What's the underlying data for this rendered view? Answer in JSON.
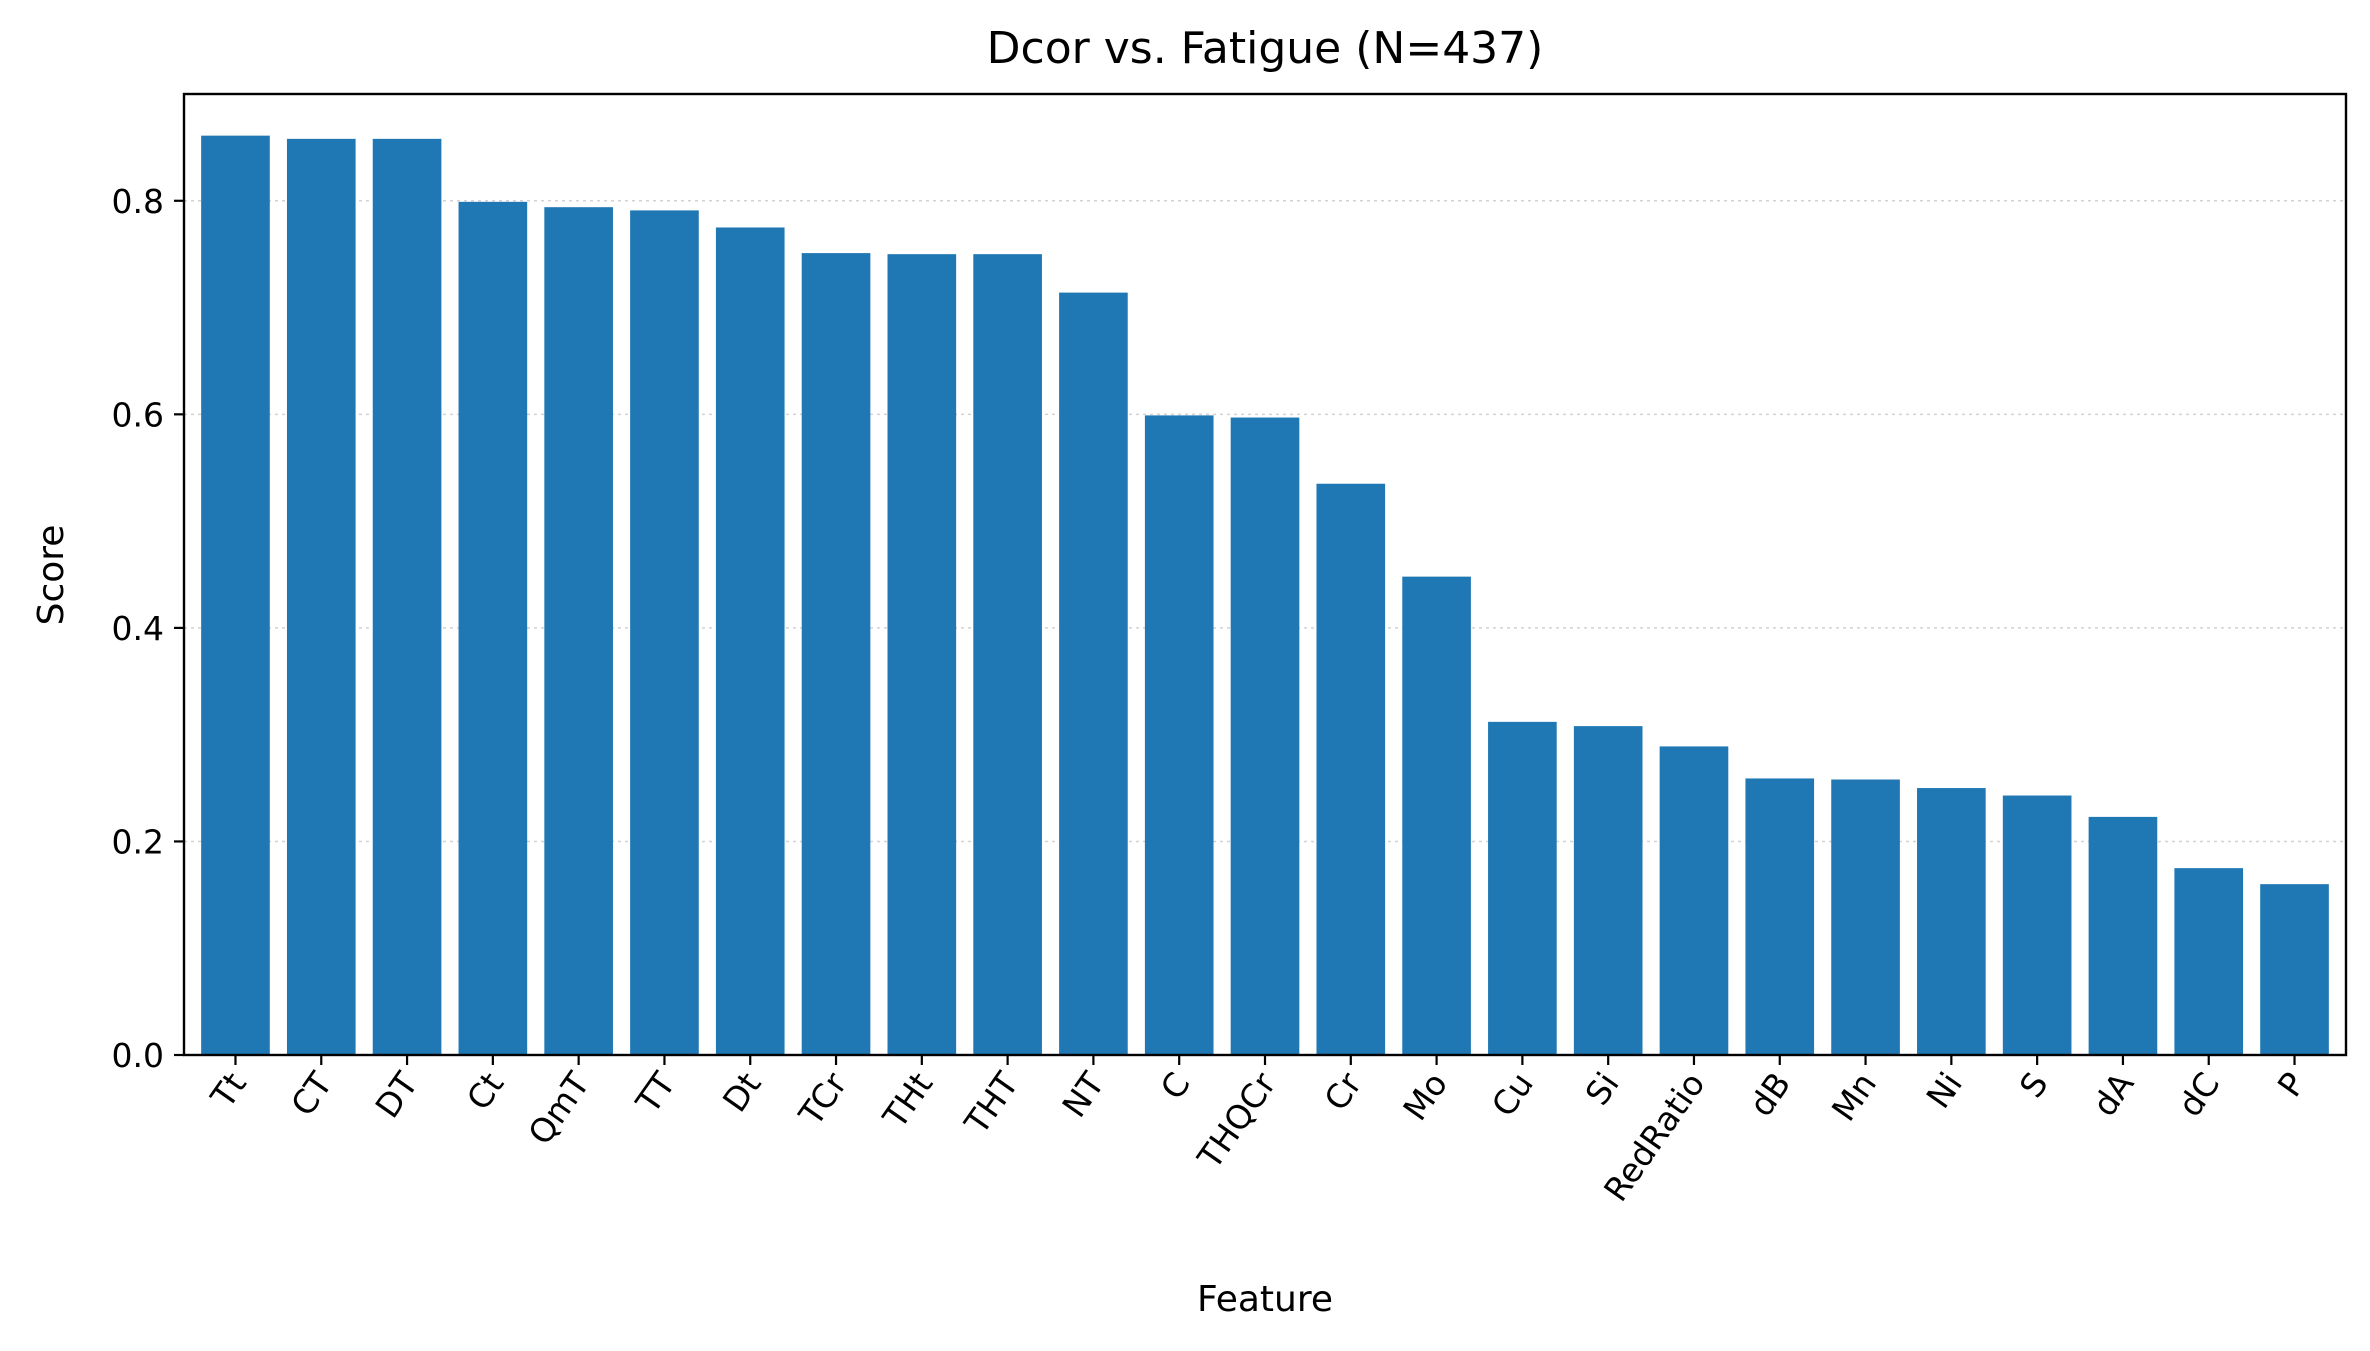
{
  "chart_data": {
    "type": "bar",
    "title": "Dcor vs. Fatigue  (N=437)",
    "xlabel": "Feature",
    "ylabel": "Score",
    "categories": [
      "Tt",
      "CT",
      "DT",
      "Ct",
      "QmT",
      "TT",
      "Dt",
      "TCr",
      "THt",
      "THT",
      "NT",
      "C",
      "THQCr",
      "Cr",
      "Mo",
      "Cu",
      "Si",
      "RedRatio",
      "dB",
      "Mn",
      "Ni",
      "S",
      "dA",
      "dC",
      "P"
    ],
    "values": [
      0.861,
      0.858,
      0.858,
      0.799,
      0.794,
      0.791,
      0.775,
      0.751,
      0.75,
      0.75,
      0.714,
      0.599,
      0.597,
      0.535,
      0.448,
      0.312,
      0.308,
      0.289,
      0.259,
      0.258,
      0.25,
      0.243,
      0.223,
      0.175,
      0.16
    ],
    "ylim": [
      0,
      0.9
    ],
    "yticks": [
      0.0,
      0.2,
      0.4,
      0.6,
      0.8
    ],
    "ytick_labels": [
      "0.0",
      "0.2",
      "0.4",
      "0.6",
      "0.8"
    ],
    "grid": "horizontal dotted",
    "bar_color": "#1f77b4",
    "grid_color": "#d3d3d3"
  }
}
